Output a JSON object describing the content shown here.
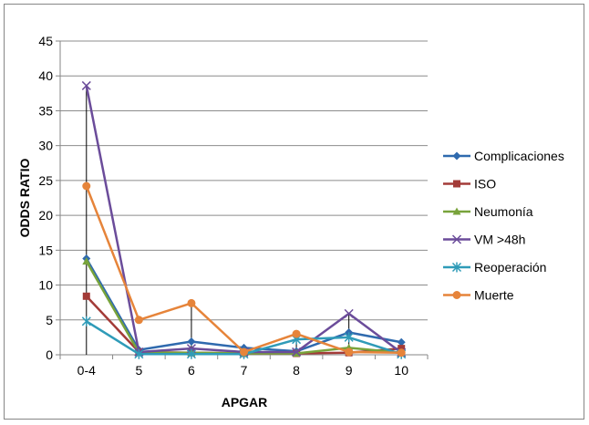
{
  "chart_data": {
    "type": "line",
    "categories": [
      "0-4",
      "5",
      "6",
      "7",
      "8",
      "9",
      "10"
    ],
    "xlabel": "APGAR",
    "ylabel": "ODDS RATIO",
    "ylim": [
      0,
      45
    ],
    "y_ticks": [
      "0",
      "5",
      "10",
      "15",
      "20",
      "25",
      "30",
      "35",
      "40",
      "45"
    ],
    "grid": "horizontal",
    "legend_position": "right",
    "error_bars": "vertical black lines at 0-4, 6, 8 and 9",
    "series": [
      {
        "name": "Complicaciones",
        "color": "#2F6AAE",
        "marker": "diamond",
        "values": [
          13.8,
          0.7,
          1.9,
          1.0,
          0.5,
          3.2,
          1.8
        ]
      },
      {
        "name": "ISO",
        "color": "#A33B38",
        "marker": "square",
        "values": [
          8.4,
          0.4,
          0.3,
          0.2,
          0.2,
          0.3,
          0.9
        ]
      },
      {
        "name": "Neumonía",
        "color": "#78A33B",
        "marker": "triangle",
        "values": [
          13.4,
          0.3,
          0.3,
          0.2,
          0.2,
          1.0,
          0.3
        ]
      },
      {
        "name": "VM >48h",
        "color": "#6B4C9A",
        "marker": "x",
        "values": [
          38.6,
          0.4,
          0.9,
          0.4,
          0.4,
          5.9,
          0.3
        ]
      },
      {
        "name": "Reoperación",
        "color": "#2F9BB8",
        "marker": "star",
        "values": [
          4.8,
          0.1,
          0.1,
          0.1,
          2.2,
          2.5,
          0.1
        ]
      },
      {
        "name": "Muerte",
        "color": "#E6843A",
        "marker": "circle",
        "values": [
          24.2,
          5.0,
          7.4,
          0.4,
          3.0,
          0.4,
          0.3
        ]
      }
    ]
  }
}
